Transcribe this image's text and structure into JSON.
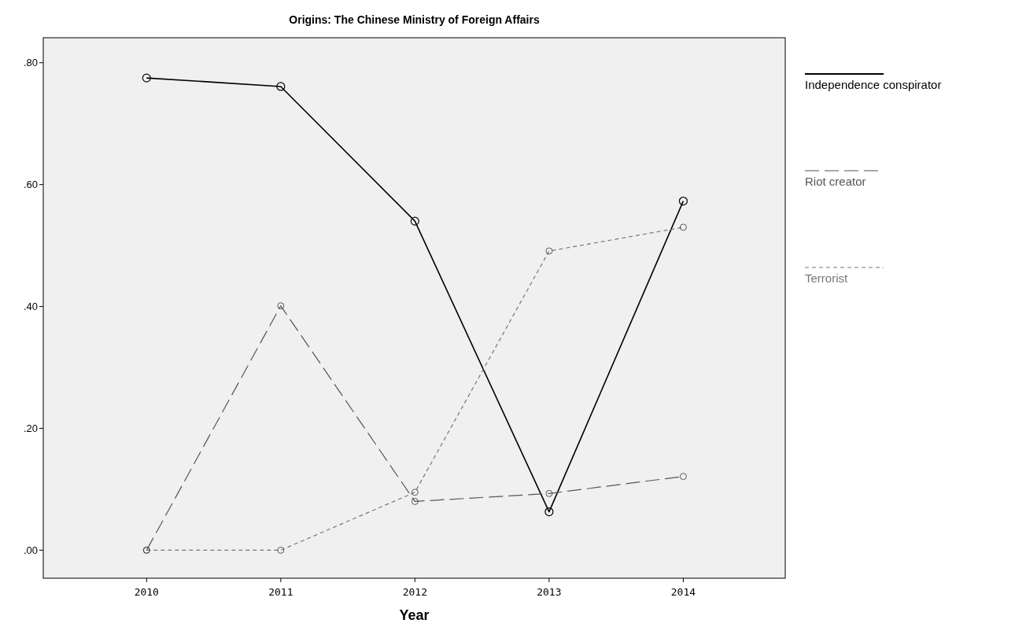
{
  "chart_data": {
    "type": "line",
    "title": "Origins: The Chinese Ministry of Foreign Affairs",
    "xlabel": "Year",
    "x": [
      2010,
      2011,
      2012,
      2013,
      2014
    ],
    "xlim": [
      2009.23,
      2014.76
    ],
    "xticks": [
      2010,
      2011,
      2012,
      2013,
      2014
    ],
    "ylim": [
      -0.046,
      0.841
    ],
    "yticks": [
      {
        "value": 0,
        "label": ".00"
      },
      {
        "value": 0.2,
        "label": ".20"
      },
      {
        "value": 0.4,
        "label": ".40"
      },
      {
        "value": 0.6,
        "label": ".60"
      },
      {
        "value": 0.8,
        "label": ".80"
      }
    ],
    "legend": "right",
    "marker": "circle",
    "grid": false,
    "series": [
      {
        "name": "Independence conspirator",
        "color": "#000000",
        "line_style": "solid",
        "values": [
          0.775,
          0.761,
          0.54,
          0.063,
          0.573
        ]
      },
      {
        "name": "Riot creator",
        "color": "#555555",
        "line_style": "dashed",
        "values": [
          0.0,
          0.401,
          0.08,
          0.093,
          0.121
        ]
      },
      {
        "name": "Terrorist",
        "color": "#777777",
        "line_style": "dotted",
        "values": [
          0.0,
          0.0,
          0.095,
          0.491,
          0.53
        ]
      }
    ]
  }
}
